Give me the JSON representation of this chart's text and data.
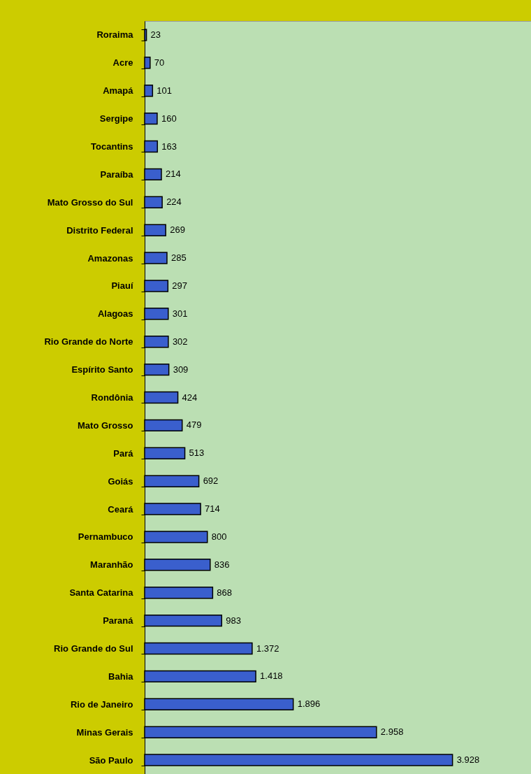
{
  "chart_data": {
    "type": "bar",
    "orientation": "horizontal",
    "categories": [
      "Roraima",
      "Acre",
      "Amapá",
      "Sergipe",
      "Tocantins",
      "Paraíba",
      "Mato Grosso do Sul",
      "Distrito Federal",
      "Amazonas",
      "Piauí",
      "Alagoas",
      "Rio Grande do Norte",
      "Espírito Santo",
      "Rondônia",
      "Mato Grosso",
      "Pará",
      "Goiás",
      "Ceará",
      "Pernambuco",
      "Maranhão",
      "Santa Catarina",
      "Paraná",
      "Rio Grande do Sul",
      "Bahia",
      "Rio de Janeiro",
      "Minas Gerais",
      "São Paulo"
    ],
    "values": [
      23,
      70,
      101,
      160,
      163,
      214,
      224,
      269,
      285,
      297,
      301,
      302,
      309,
      424,
      479,
      513,
      692,
      714,
      800,
      836,
      868,
      983,
      1372,
      1418,
      1896,
      2958,
      3928
    ],
    "value_labels": [
      "23",
      "70",
      "101",
      "160",
      "163",
      "214",
      "224",
      "269",
      "285",
      "297",
      "301",
      "302",
      "309",
      "424",
      "479",
      "513",
      "692",
      "714",
      "800",
      "836",
      "868",
      "983",
      "1.372",
      "1.418",
      "1.896",
      "2.958",
      "3.928"
    ],
    "color": "#3a5fcd",
    "grid": false
  }
}
